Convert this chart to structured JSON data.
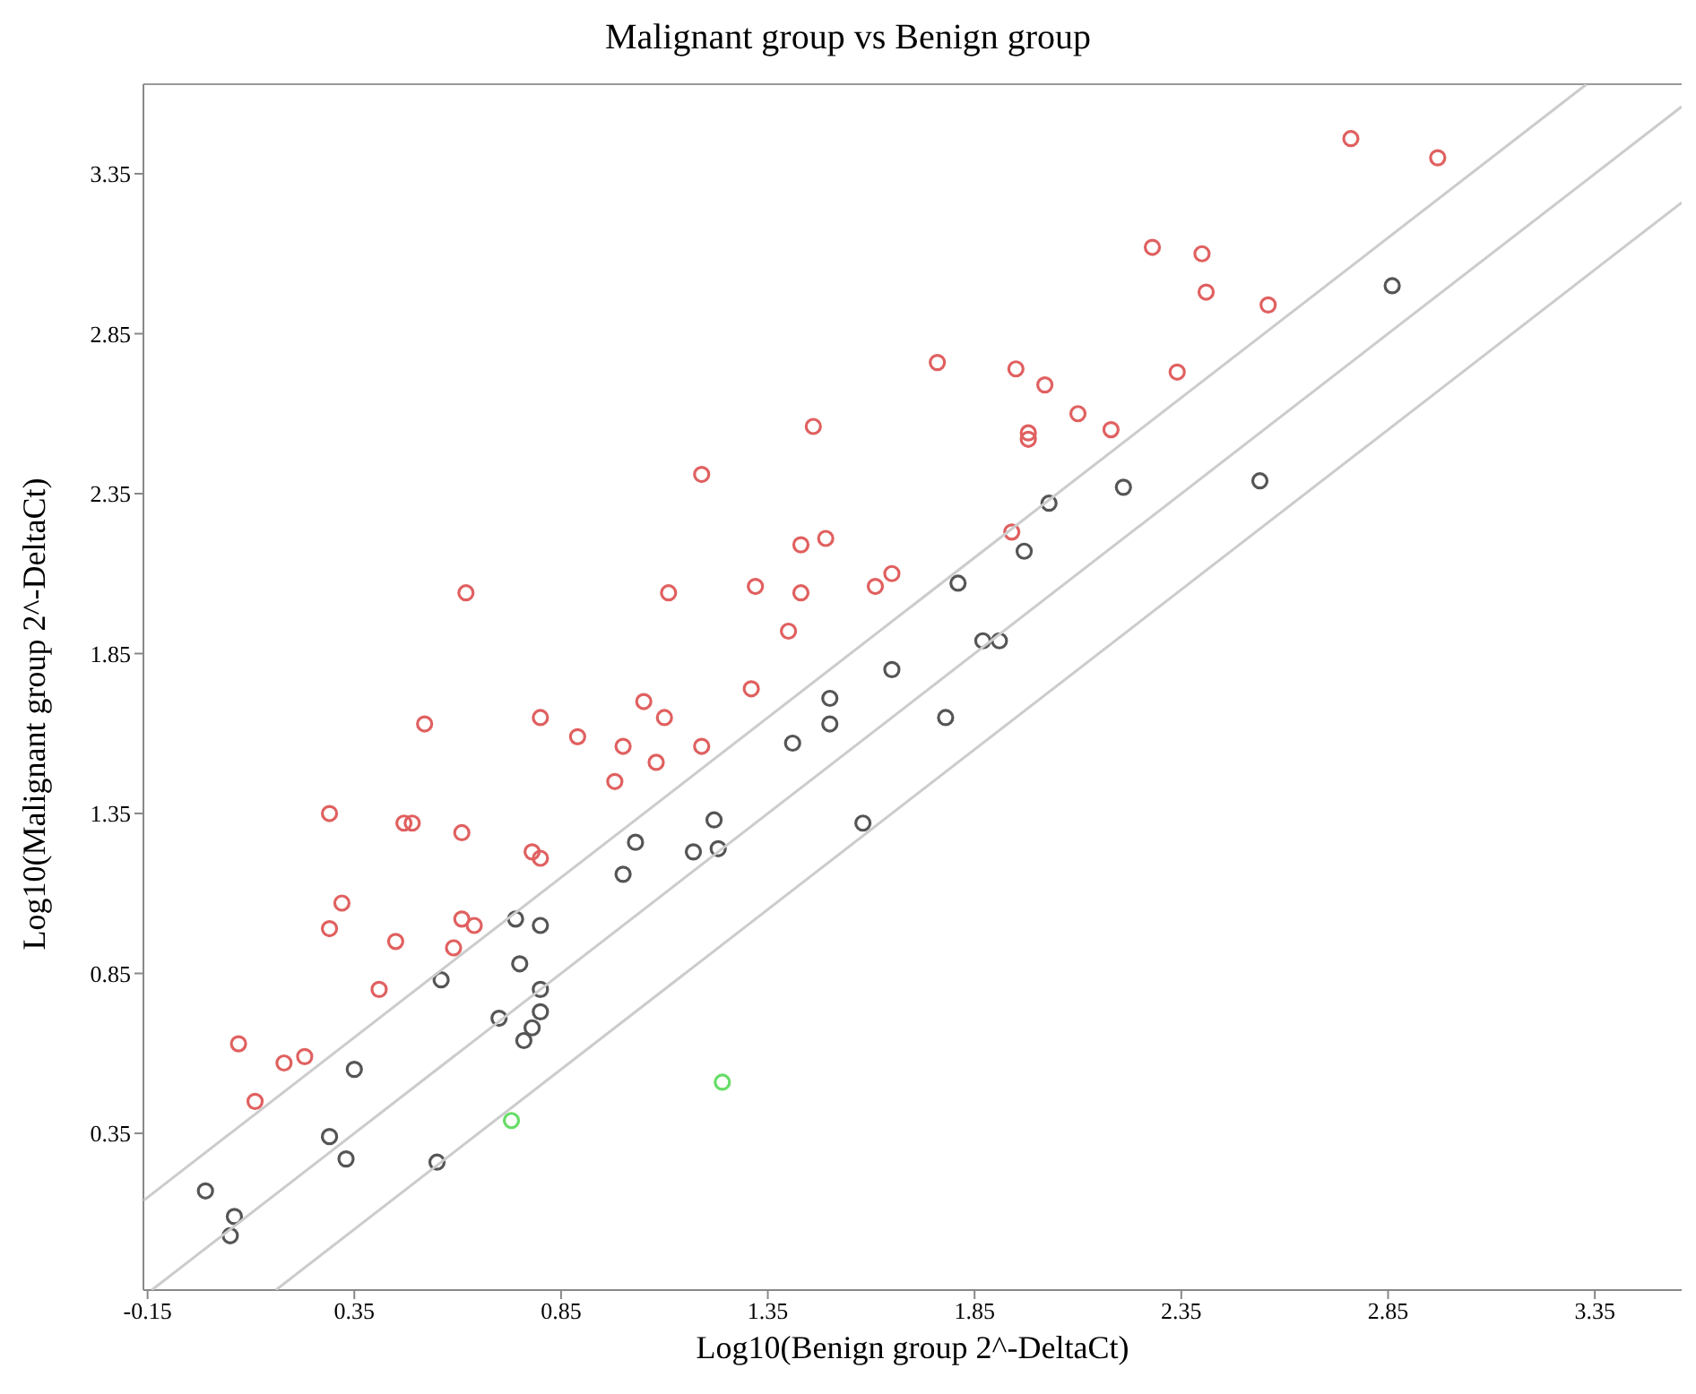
{
  "chart_data": {
    "type": "scatter",
    "title": "Malignant group vs Benign group",
    "xlabel": "Log10(Benign group 2^-DeltaCt)",
    "ylabel": "Log10(Malignant group 2^-DeltaCt)",
    "xlim": [
      -0.16,
      3.56
    ],
    "ylim": [
      -0.14,
      3.63
    ],
    "xticks": [
      -0.15,
      0.35,
      0.85,
      1.35,
      1.85,
      2.35,
      2.85,
      3.35
    ],
    "yticks": [
      0.35,
      0.85,
      1.35,
      1.85,
      2.35,
      2.85,
      3.35
    ],
    "grid": false,
    "marker": "circle",
    "series": [
      {
        "color": "#e06060",
        "x": [
          0.07,
          0.11,
          0.18,
          0.23,
          0.29,
          0.29,
          0.32,
          0.41,
          0.45,
          0.47,
          0.49,
          0.52,
          0.59,
          0.61,
          0.61,
          0.64,
          0.62,
          0.78,
          0.8,
          0.8,
          0.89,
          0.98,
          1.0,
          1.05,
          1.08,
          1.1,
          1.11,
          1.19,
          1.19,
          1.31,
          1.32,
          1.4,
          1.43,
          1.43,
          1.46,
          1.49,
          1.61,
          1.65,
          1.76,
          1.94,
          1.95,
          1.98,
          1.98,
          2.02,
          2.1,
          2.18,
          2.28,
          2.34,
          2.4,
          2.41,
          2.56,
          2.76,
          2.97
        ],
        "values": [
          0.63,
          0.45,
          0.57,
          0.59,
          1.35,
          0.99,
          1.07,
          0.8,
          0.95,
          1.32,
          1.32,
          1.63,
          0.93,
          1.02,
          1.29,
          1.0,
          2.04,
          1.23,
          1.21,
          1.65,
          1.59,
          1.45,
          1.56,
          1.7,
          1.51,
          1.65,
          2.04,
          1.56,
          2.41,
          1.74,
          2.06,
          1.92,
          2.19,
          2.04,
          2.56,
          2.21,
          2.06,
          2.1,
          2.76,
          2.23,
          2.74,
          2.54,
          2.52,
          2.69,
          2.6,
          2.55,
          3.12,
          2.73,
          3.1,
          2.98,
          2.94,
          3.46,
          3.4
        ]
      },
      {
        "color": "#555555",
        "x": [
          -0.01,
          0.06,
          0.05,
          0.29,
          0.33,
          0.35,
          0.55,
          0.56,
          0.7,
          0.74,
          0.75,
          0.76,
          0.78,
          0.8,
          0.8,
          0.8,
          1.0,
          1.03,
          1.17,
          1.22,
          1.23,
          1.41,
          1.5,
          1.5,
          1.58,
          1.65,
          1.78,
          1.81,
          1.87,
          1.91,
          1.97,
          2.03,
          2.21,
          2.54,
          2.86
        ],
        "values": [
          0.17,
          0.09,
          0.03,
          0.34,
          0.27,
          0.55,
          0.26,
          0.83,
          0.71,
          1.02,
          0.88,
          0.64,
          0.68,
          0.73,
          0.8,
          1.0,
          1.16,
          1.26,
          1.23,
          1.33,
          1.24,
          1.57,
          1.71,
          1.63,
          1.32,
          1.8,
          1.65,
          2.07,
          1.89,
          1.89,
          2.17,
          2.32,
          2.37,
          2.39,
          3.0
        ]
      },
      {
        "color": "#66dd66",
        "x": [
          0.73,
          1.24
        ],
        "values": [
          0.39,
          0.51
        ]
      },
      {
        "type": "line",
        "marker": "none",
        "color": "#cccccc",
        "x": [
          -0.16,
          3.33
        ],
        "values": [
          0.14,
          3.63
        ]
      },
      {
        "type": "line",
        "marker": "none",
        "color": "#cccccc",
        "x": [
          -0.14,
          3.56
        ],
        "values": [
          -0.14,
          3.56
        ]
      },
      {
        "type": "line",
        "marker": "none",
        "color": "#cccccc",
        "x": [
          0.16,
          3.56
        ],
        "values": [
          -0.14,
          3.26
        ]
      }
    ]
  }
}
